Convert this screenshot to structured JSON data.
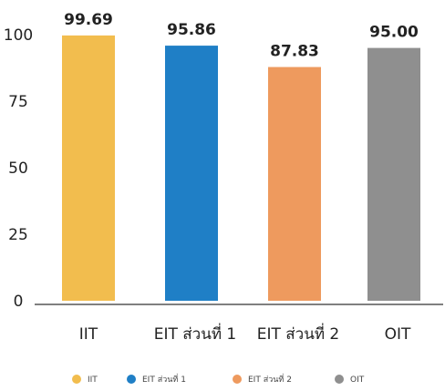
{
  "chart_data": {
    "type": "bar",
    "categories": [
      "IIT",
      "EIT ส่วนที่ 1",
      "EIT ส่วนที่ 2",
      "OIT"
    ],
    "values": [
      99.69,
      95.86,
      87.83,
      95.0
    ],
    "value_labels": [
      "99.69",
      "95.86",
      "87.83",
      "95.00"
    ],
    "ylim": [
      0,
      100
    ],
    "yticks": [
      "0",
      "25",
      "50",
      "75",
      "100"
    ],
    "grid": false,
    "legend_position": "bottom",
    "legend": [
      "IIT",
      "EIT ส่วนที่ 1",
      "EIT ส่วนที่ 2",
      "OIT"
    ],
    "colors": [
      "#f2bd4e",
      "#1f7fc6",
      "#ee9a5e",
      "#8f8f8f"
    ]
  }
}
